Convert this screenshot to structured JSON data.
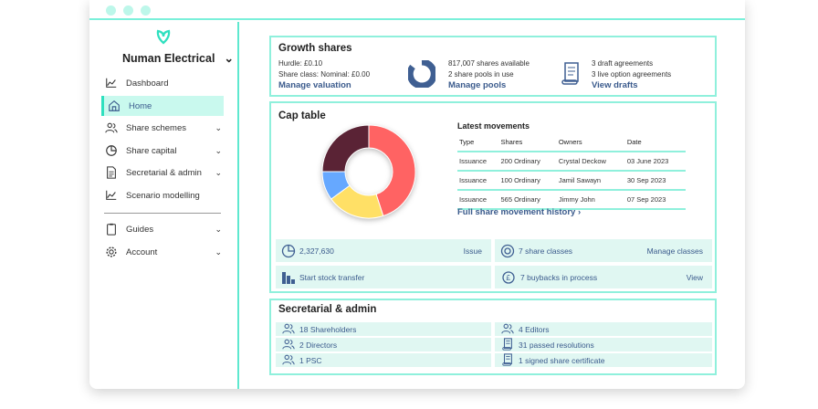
{
  "sidebar": {
    "org": "Numan Electrical",
    "items": [
      {
        "label": "Dashboard",
        "icon": "chart-line-icon",
        "chevron": false
      },
      {
        "label": "Home",
        "icon": "home-icon",
        "chevron": false,
        "active": true
      },
      {
        "label": "Share schemes",
        "icon": "users-icon",
        "chevron": true
      },
      {
        "label": "Share capital",
        "icon": "pie-chart-icon",
        "chevron": true
      },
      {
        "label": "Secretarial & admin",
        "icon": "document-icon",
        "chevron": true
      },
      {
        "label": "Scenario modelling",
        "icon": "chart-line-icon",
        "chevron": false
      }
    ],
    "bottom_items": [
      {
        "label": "Guides",
        "icon": "clipboard-icon"
      },
      {
        "label": "Account",
        "icon": "gear-icon"
      }
    ]
  },
  "growth": {
    "title": "Growth shares",
    "hurdle": "Hurdle: £0.10",
    "share_class": "Share class: Nominal: £0.00",
    "manage_valuation": "Manage valuation",
    "shares_available": "817,007 shares available",
    "pools": "2 share pools in use",
    "manage_pools": "Manage pools",
    "drafts": "3 draft agreements",
    "live": "3 live option agreements",
    "view_drafts": "View drafts"
  },
  "cap": {
    "title": "Cap table",
    "movements_title": "Latest movements",
    "headers": [
      "Type",
      "Shares",
      "Owners",
      "Date"
    ],
    "rows": [
      [
        "Issuance",
        "200 Ordinary",
        "Crystal Deckow",
        "03 June 2023"
      ],
      [
        "Issuance",
        "100 Ordinary",
        "Jamil Sawayn",
        "30 Sep 2023"
      ],
      [
        "Issuance",
        "565 Ordinary",
        "Jimmy John",
        "07 Sep 2023"
      ]
    ],
    "history_link": "Full share movement history",
    "tiles": {
      "total": "2,327,630",
      "issue": "Issue",
      "classes": "7 share classes",
      "manage_classes": "Manage classes",
      "transfer": "Start stock transfer",
      "buybacks": "7 buybacks in process",
      "view": "View"
    }
  },
  "chart_data": {
    "type": "pie",
    "donut": true,
    "values": [
      45,
      20,
      10,
      25
    ],
    "colors": [
      "#ff6363",
      "#ffe066",
      "#66a8ff",
      "#5a2335"
    ]
  },
  "sec": {
    "title": "Secretarial & admin",
    "left": [
      "18 Shareholders",
      "2 Directors",
      "1 PSC"
    ],
    "right": [
      "4 Editors",
      "31 passed resolutions",
      "1 signed share certificate"
    ]
  }
}
